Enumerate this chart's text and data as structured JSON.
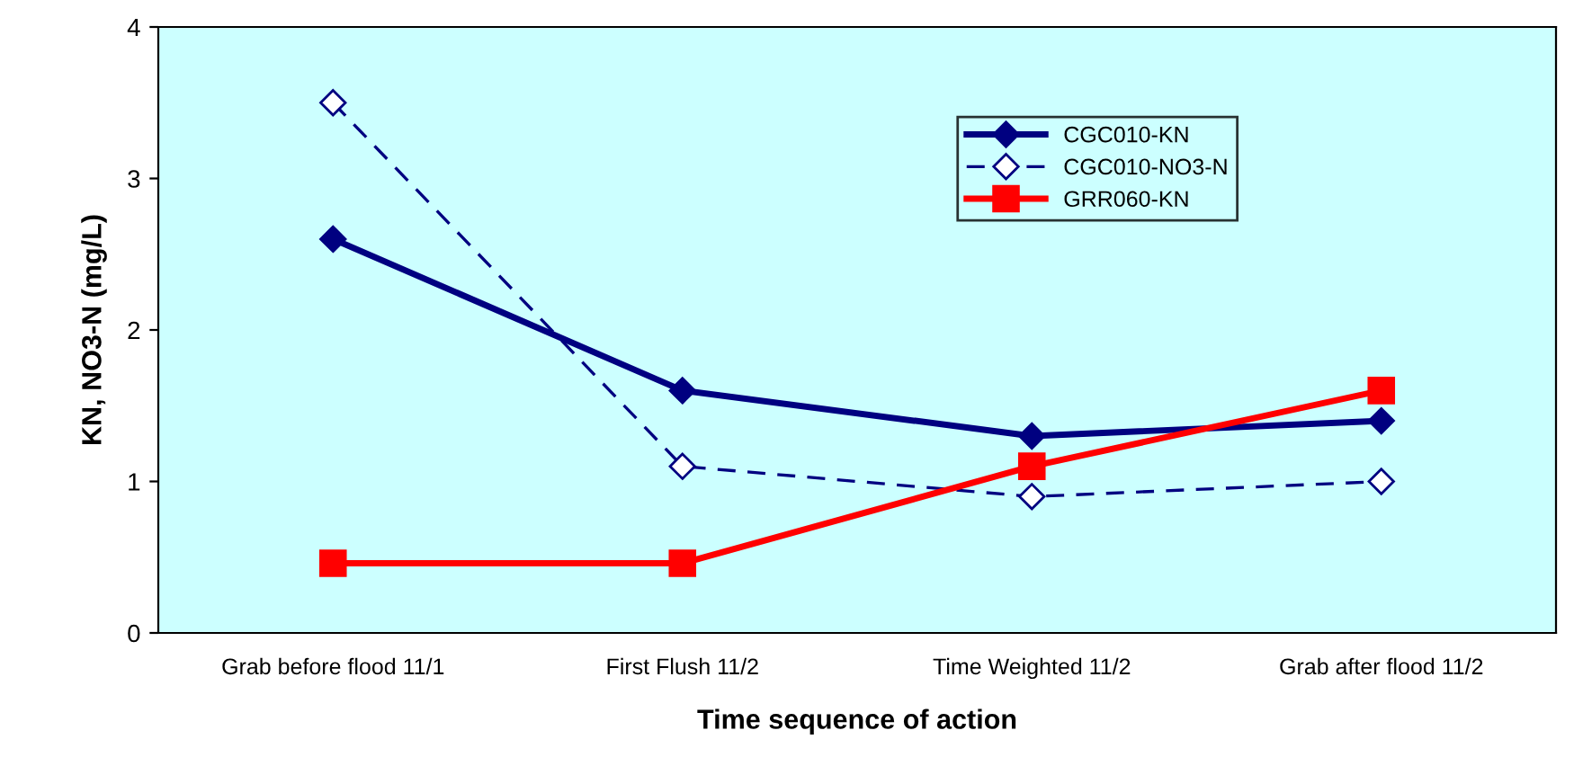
{
  "chart_data": {
    "type": "line",
    "xlabel": "Time sequence of action",
    "ylabel": "KN, NO3-N (mg/L)",
    "categories": [
      "Grab before flood 11/1",
      "First Flush 11/2",
      "Time Weighted 11/2",
      "Grab after flood 11/2"
    ],
    "series": [
      {
        "name": "CGC010-KN",
        "color": "#000080",
        "values": [
          2.6,
          1.6,
          1.3,
          1.4
        ],
        "marker": "diamond",
        "line_style": "solid"
      },
      {
        "name": "CGC010-NO3-N",
        "color": "#000080",
        "values": [
          3.5,
          1.1,
          0.9,
          1.0
        ],
        "marker": "diamond",
        "line_style": "dashed"
      },
      {
        "name": "GRR060-KN",
        "color": "#ff0000",
        "values": [
          0.46,
          0.46,
          1.1,
          1.6
        ],
        "marker": "square",
        "line_style": "solid"
      }
    ],
    "ylim": [
      0,
      4
    ],
    "yticks": [
      0,
      1,
      2,
      3,
      4
    ],
    "grid": false,
    "legend": "top right"
  }
}
